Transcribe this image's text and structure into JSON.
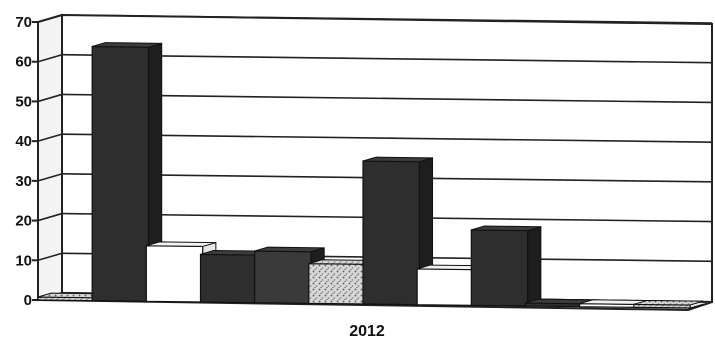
{
  "chart_data": {
    "type": "bar",
    "style": "3d",
    "categories": [
      "2012"
    ],
    "series": [
      {
        "values": [
          0
        ],
        "color": "#a8a8a8",
        "pattern": "speckle"
      },
      {
        "values": [
          64
        ],
        "color": "#2e2e2e"
      },
      {
        "values": [
          14
        ],
        "color": "#ffffff"
      },
      {
        "values": [
          12
        ],
        "color": "#2e2e2e"
      },
      {
        "values": [
          13
        ],
        "color": "#3a3a3a"
      },
      {
        "values": [
          10
        ],
        "color": "#bdbdbd",
        "pattern": "speckle"
      },
      {
        "values": [
          36
        ],
        "color": "#2e2e2e"
      },
      {
        "values": [
          9
        ],
        "color": "#ffffff"
      },
      {
        "values": [
          19
        ],
        "color": "#2e2e2e"
      },
      {
        "values": [
          0
        ],
        "color": "#2e2e2e"
      },
      {
        "values": [
          0
        ],
        "color": "#ffffff"
      },
      {
        "values": [
          0
        ],
        "color": "#a8a8a8",
        "pattern": "speckle"
      }
    ],
    "yticks": [
      0,
      10,
      20,
      30,
      40,
      50,
      60,
      70
    ],
    "ylim": [
      0,
      70
    ],
    "grid": true,
    "title": "",
    "xlabel": "",
    "ylabel": ""
  }
}
